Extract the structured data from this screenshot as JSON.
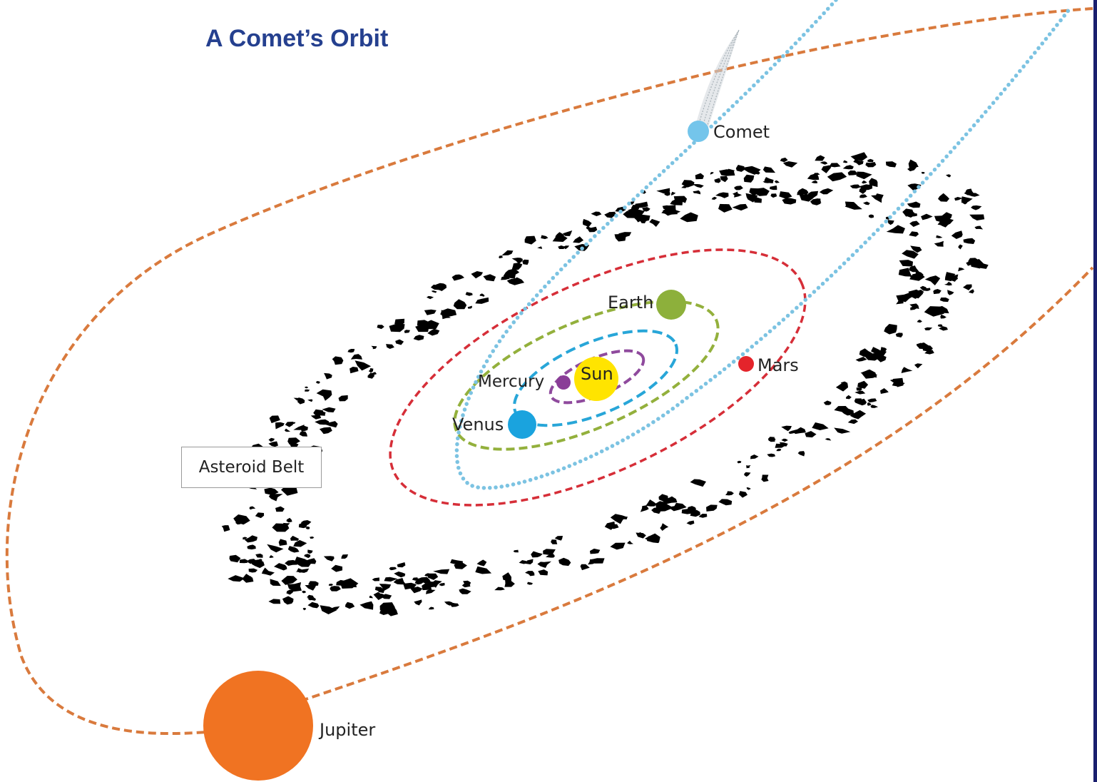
{
  "title": "A Comet’s Orbit",
  "labels": {
    "comet": "Comet",
    "earth": "Earth",
    "mars": "Mars",
    "mercury": "Mercury",
    "sun": "Sun",
    "venus": "Venus",
    "jupiter": "Jupiter",
    "asteroid_belt": "Asteroid Belt"
  },
  "colors": {
    "title": "#25408f",
    "comet": "#74c5eb",
    "earth": "#8db03b",
    "mars": "#e4242b",
    "mercury": "#8a3d97",
    "sun": "#ffe400",
    "venus": "#1aa3de",
    "jupiter": "#f07322",
    "jupiter_orbit": "#d97a3d",
    "mars_orbit": "#d62e38",
    "earth_orbit": "#93b03c",
    "venus_orbit": "#28a6d8",
    "mercury_orbit": "#8f4a9d",
    "comet_orbit": "#7cc3e2",
    "asteroids": "#000000"
  }
}
